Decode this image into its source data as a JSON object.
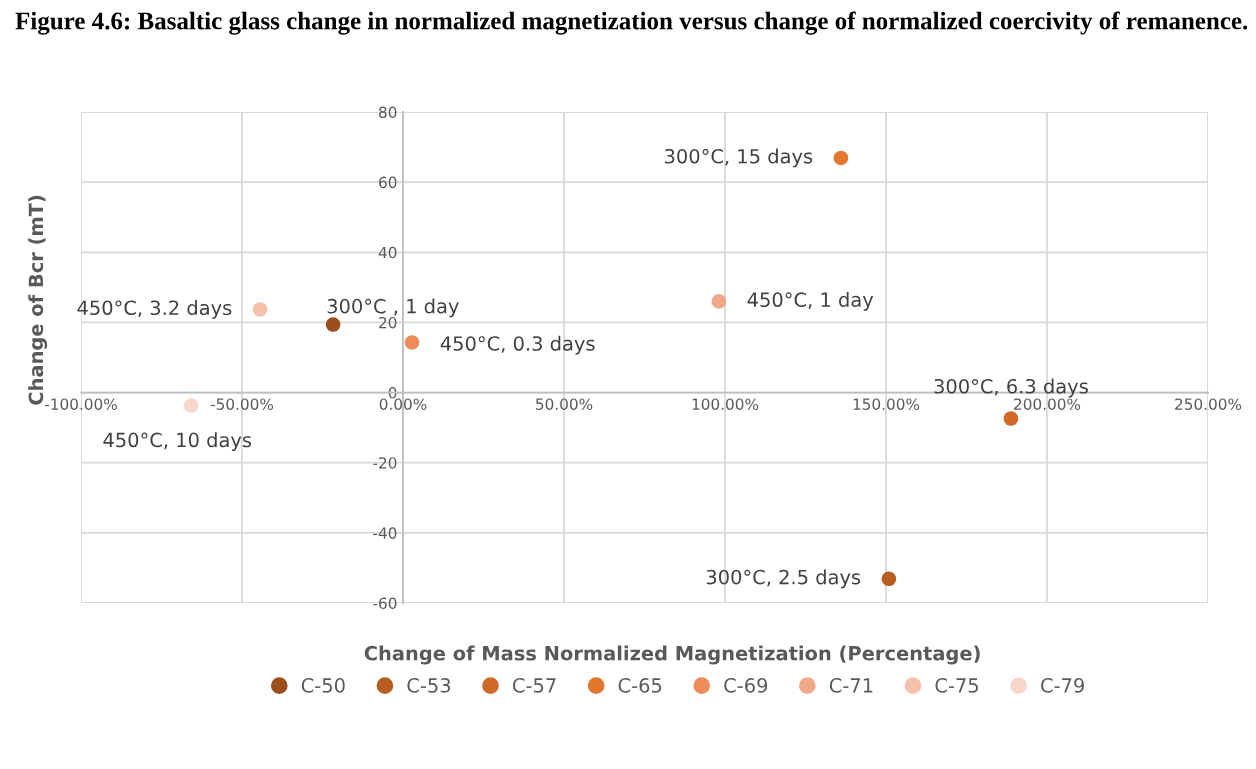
{
  "chart_data": {
    "type": "scatter",
    "title": "Figure 4.6: Basaltic glass change in normalized magnetization versus change of normalized coercivity of remanence.",
    "xlabel": "Change of Mass Normalized Magnetization (Percentage)",
    "ylabel": "Change of Bcr (mT)",
    "series": [
      {
        "name": "C-50",
        "color": "#9c4f1d",
        "x": [
          -21.7
        ],
        "values": [
          19.4
        ]
      },
      {
        "name": "C-53",
        "color": "#b85c22",
        "x": [
          150.9
        ],
        "values": [
          -53.1
        ]
      },
      {
        "name": "C-57",
        "color": "#d06a26",
        "x": [
          188.8
        ],
        "values": [
          -7.4
        ]
      },
      {
        "name": "C-65",
        "color": "#e4772e",
        "x": [
          136
        ],
        "values": [
          66.9
        ]
      },
      {
        "name": "C-69",
        "color": "#ee8d5a",
        "x": [
          2.8
        ],
        "values": [
          14.3
        ]
      },
      {
        "name": "C-71",
        "color": "#f1a88a",
        "x": [
          98.1
        ],
        "values": [
          26
        ]
      },
      {
        "name": "C-75",
        "color": "#f5c1ac",
        "x": [
          -44.4
        ],
        "values": [
          23.7
        ]
      },
      {
        "name": "C-79",
        "color": "#f8d7ca",
        "x": [
          -65.8
        ],
        "values": [
          -3.7
        ]
      }
    ],
    "annotations": [
      {
        "text": "300°C , 1 day",
        "x": -21.7,
        "y": 19.4
      },
      {
        "text": "300°C, 2.5 days",
        "x": 150.9,
        "y": -53.1
      },
      {
        "text": "300°C, 6.3 days",
        "x": 188.8,
        "y": -7.4
      },
      {
        "text": "300°C, 15 days",
        "x": 136,
        "y": 66.9
      },
      {
        "text": "450°C, 0.3 days",
        "x": 2.8,
        "y": 14.3
      },
      {
        "text": "450°C, 1 day",
        "x": 98.1,
        "y": 26
      },
      {
        "text": "450°C, 3.2 days",
        "x": -44.4,
        "y": 23.7
      },
      {
        "text": "450°C, 10 days",
        "x": -65.8,
        "y": -3.7
      }
    ],
    "xlim": [
      -100,
      250
    ],
    "xticks": [
      {
        "value": -100,
        "label": "-100.00%"
      },
      {
        "value": -50,
        "label": "-50.00%"
      },
      {
        "value": 0,
        "label": "0.00%"
      },
      {
        "value": 50,
        "label": "50.00%"
      },
      {
        "value": 100,
        "label": "100.00%"
      },
      {
        "value": 150,
        "label": "150.00%"
      },
      {
        "value": 200,
        "label": "200.00%"
      },
      {
        "value": 250,
        "label": "250.00%"
      }
    ],
    "ylim": [
      -60,
      80
    ],
    "yticks": [
      -60,
      -40,
      -20,
      0,
      20,
      40,
      60,
      80
    ],
    "grid": true,
    "legend": "bottom",
    "marker": "circle"
  }
}
